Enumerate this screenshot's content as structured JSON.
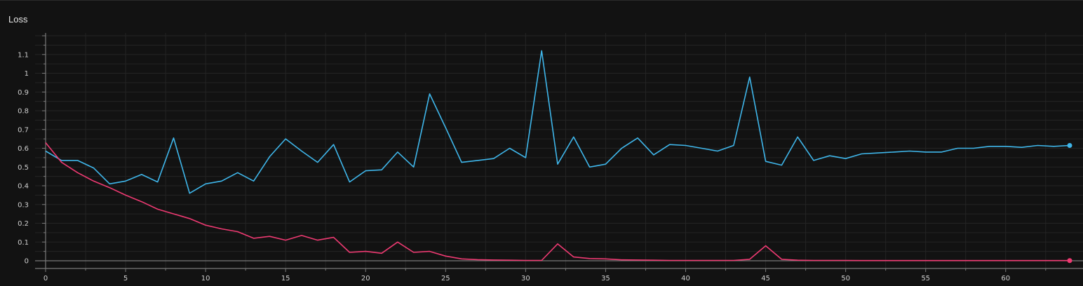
{
  "panel": {
    "title": "Loss"
  },
  "colors": {
    "background": "#121212",
    "grid": "#242424",
    "axis": "#7a7a7a",
    "series_blue": "#3fb6ea",
    "series_pink": "#ee3a72"
  },
  "chart_data": {
    "type": "line",
    "title": "Loss",
    "xlabel": "",
    "ylabel": "",
    "xlim": [
      0,
      64
    ],
    "ylim": [
      0,
      1.2
    ],
    "x_ticks": [
      0,
      5,
      10,
      15,
      20,
      25,
      30,
      35,
      40,
      45,
      50,
      55,
      60
    ],
    "y_ticks": [
      0,
      0.1,
      0.2,
      0.3,
      0.4,
      0.5,
      0.6,
      0.7,
      0.8,
      0.9,
      1,
      1.1
    ],
    "grid": true,
    "legend": "none",
    "series": [
      {
        "color": "#3fb6ea",
        "x": [
          0,
          1,
          2,
          3,
          4,
          5,
          6,
          7,
          8,
          9,
          10,
          11,
          12,
          13,
          14,
          15,
          16,
          17,
          18,
          19,
          20,
          21,
          22,
          23,
          24,
          25,
          26,
          27,
          28,
          29,
          30,
          31,
          32,
          33,
          34,
          35,
          36,
          37,
          38,
          39,
          40,
          41,
          42,
          43,
          44,
          45,
          46,
          47,
          48,
          49,
          50,
          51,
          52,
          53,
          54,
          55,
          56,
          57,
          58,
          59,
          60,
          61,
          62,
          63,
          64
        ],
        "values": [
          0.585,
          0.535,
          0.535,
          0.495,
          0.41,
          0.425,
          0.46,
          0.42,
          0.655,
          0.36,
          0.41,
          0.425,
          0.47,
          0.425,
          0.555,
          0.65,
          0.585,
          0.525,
          0.62,
          0.42,
          0.48,
          0.485,
          0.58,
          0.5,
          0.89,
          0.71,
          0.525,
          0.535,
          0.545,
          0.6,
          0.55,
          1.12,
          0.515,
          0.66,
          0.5,
          0.515,
          0.6,
          0.655,
          0.565,
          0.62,
          0.615,
          0.6,
          0.585,
          0.615,
          0.98,
          0.53,
          0.51,
          0.66,
          0.535,
          0.56,
          0.545,
          0.57,
          0.575,
          0.58,
          0.585,
          0.58,
          0.58,
          0.6,
          0.6,
          0.61,
          0.61,
          0.605,
          0.615,
          0.61,
          0.615
        ]
      },
      {
        "color": "#ee3a72",
        "x": [
          0,
          1,
          2,
          3,
          4,
          5,
          6,
          7,
          8,
          9,
          10,
          11,
          12,
          13,
          14,
          15,
          16,
          17,
          18,
          19,
          20,
          21,
          22,
          23,
          24,
          25,
          26,
          27,
          28,
          29,
          30,
          31,
          32,
          33,
          34,
          35,
          36,
          37,
          38,
          39,
          40,
          41,
          42,
          43,
          44,
          45,
          46,
          47,
          48,
          49,
          50,
          51,
          52,
          53,
          54,
          55,
          56,
          57,
          58,
          59,
          60,
          61,
          62,
          63,
          64
        ],
        "values": [
          0.63,
          0.525,
          0.47,
          0.425,
          0.39,
          0.35,
          0.315,
          0.275,
          0.25,
          0.225,
          0.19,
          0.17,
          0.155,
          0.12,
          0.13,
          0.11,
          0.135,
          0.11,
          0.125,
          0.045,
          0.05,
          0.04,
          0.1,
          0.045,
          0.05,
          0.025,
          0.01,
          0.006,
          0.004,
          0.003,
          0.002,
          0.002,
          0.09,
          0.02,
          0.012,
          0.01,
          0.005,
          0.004,
          0.003,
          0.002,
          0.002,
          0.002,
          0.002,
          0.002,
          0.008,
          0.08,
          0.008,
          0.003,
          0.002,
          0.002,
          0.002,
          0.001,
          0.001,
          0.001,
          0.001,
          0.001,
          0.001,
          0.001,
          0.001,
          0.001,
          0.001,
          0.001,
          0.001,
          0.001,
          0.001
        ]
      }
    ]
  }
}
